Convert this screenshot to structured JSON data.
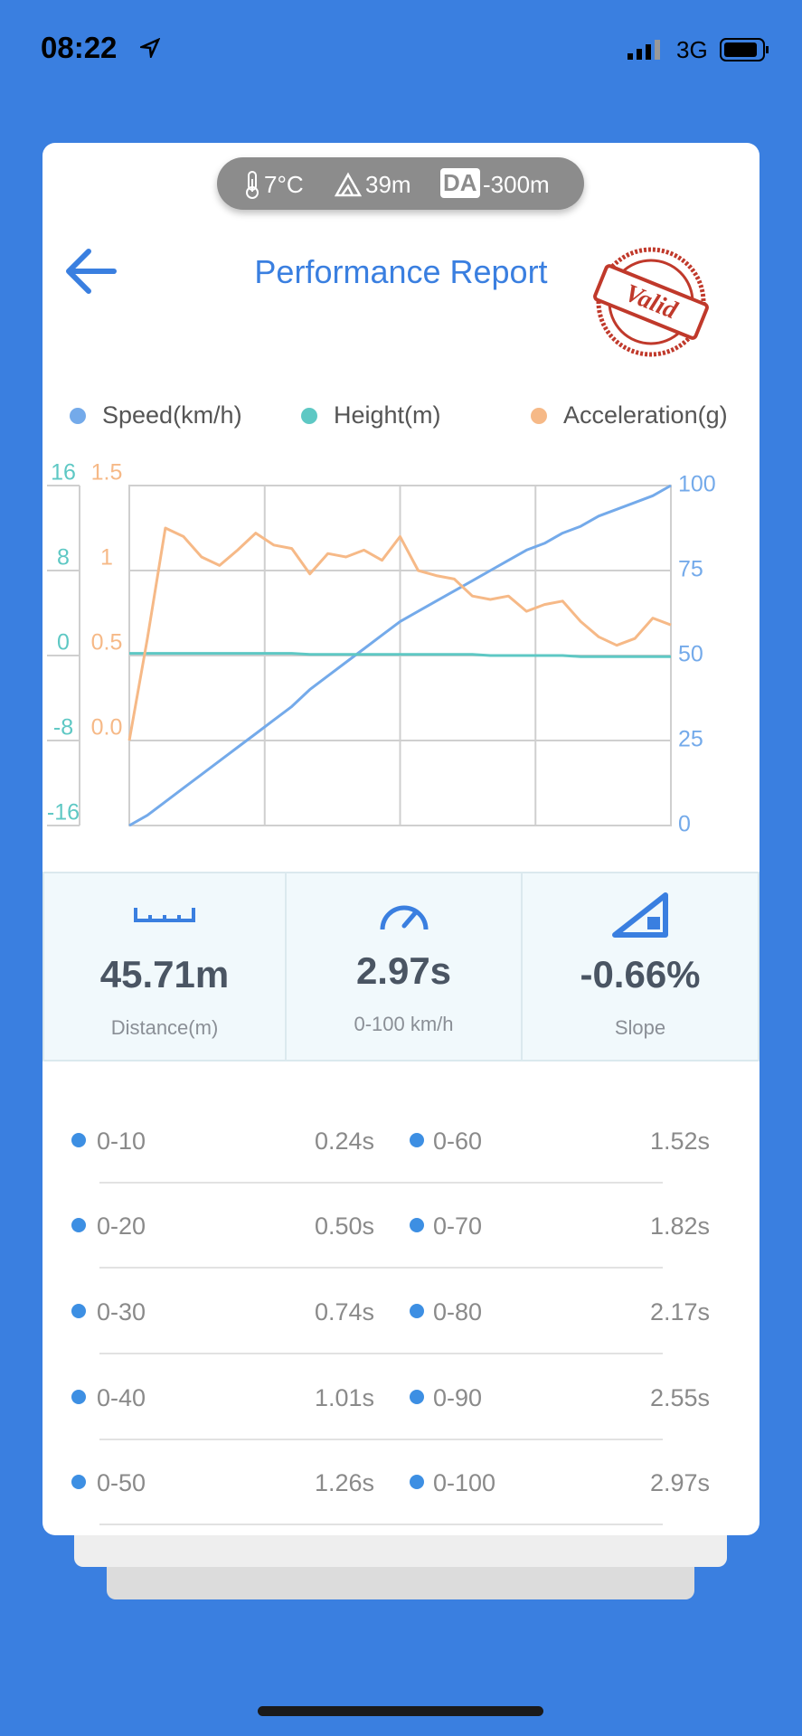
{
  "status_bar": {
    "time": "08:22",
    "network": "3G"
  },
  "conditions": {
    "temperature": "7°C",
    "altitude": "39m",
    "da_badge": "DA",
    "density_altitude": "-300m"
  },
  "header": {
    "title": "Performance Report",
    "stamp": "Valid"
  },
  "chart_data": {
    "type": "line",
    "series": [
      {
        "name": "Speed(km/h)",
        "color": "#74aaea",
        "axis": "y2",
        "values": [
          0,
          3,
          7,
          11,
          15,
          19,
          23,
          27,
          31,
          35,
          40,
          44,
          48,
          52,
          56,
          60,
          63,
          66,
          69,
          72,
          75,
          78,
          81,
          83,
          86,
          88,
          91,
          93,
          95,
          97,
          100
        ]
      },
      {
        "name": "Height(m)",
        "color": "#5ec8c4",
        "axis": "y",
        "values": [
          0.2,
          0.2,
          0.2,
          0.2,
          0.2,
          0.2,
          0.2,
          0.2,
          0.2,
          0.2,
          0.1,
          0.1,
          0.1,
          0.1,
          0.1,
          0.1,
          0.1,
          0.1,
          0.1,
          0.1,
          0,
          0,
          0,
          0,
          0,
          -0.1,
          -0.1,
          -0.1,
          -0.1,
          -0.1,
          -0.1
        ]
      },
      {
        "name": "Acceleration(g)",
        "color": "#f6b987",
        "axis": "y3",
        "values": [
          0,
          0.6,
          1.25,
          1.2,
          1.08,
          1.03,
          1.12,
          1.22,
          1.15,
          1.13,
          0.98,
          1.1,
          1.08,
          1.12,
          1.06,
          1.2,
          1.0,
          0.97,
          0.95,
          0.85,
          0.83,
          0.85,
          0.76,
          0.8,
          0.82,
          0.7,
          0.61,
          0.56,
          0.6,
          0.72,
          0.68
        ]
      }
    ],
    "ylim": [
      -16,
      16
    ],
    "yticks": [
      16,
      8,
      0,
      -8,
      -16
    ],
    "y2lim": [
      0,
      100
    ],
    "y2ticks": [
      100,
      75,
      50,
      25,
      0
    ],
    "y3lim": [
      -0.5,
      1.5
    ],
    "y3ticks": [
      1.5,
      1,
      0.5,
      {
        "value": 0,
        "label": "0.0"
      }
    ],
    "grid": true
  },
  "stats": [
    {
      "value": "45.71m",
      "label": "Distance(m)"
    },
    {
      "value": "2.97s",
      "label": "0-100 km/h"
    },
    {
      "value": "-0.66%",
      "label": "Slope"
    }
  ],
  "splits": [
    {
      "range": "0-10",
      "time": "0.24s"
    },
    {
      "range": "0-20",
      "time": "0.50s"
    },
    {
      "range": "0-30",
      "time": "0.74s"
    },
    {
      "range": "0-40",
      "time": "1.01s"
    },
    {
      "range": "0-50",
      "time": "1.26s"
    },
    {
      "range": "0-60",
      "time": "1.52s"
    },
    {
      "range": "0-70",
      "time": "1.82s"
    },
    {
      "range": "0-80",
      "time": "2.17s"
    },
    {
      "range": "0-90",
      "time": "2.55s"
    },
    {
      "range": "0-100",
      "time": "2.97s"
    }
  ]
}
